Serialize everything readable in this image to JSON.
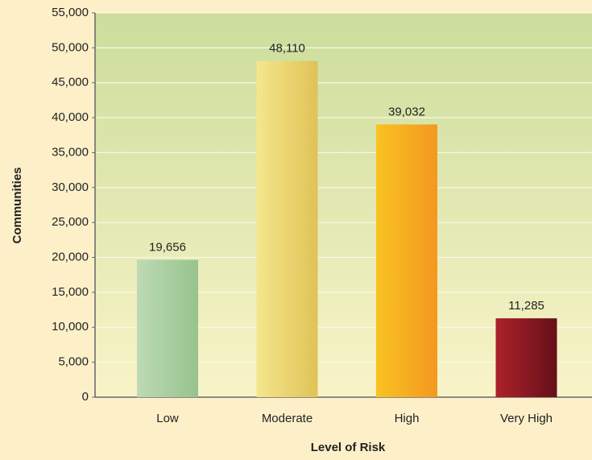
{
  "chart_data": {
    "type": "bar",
    "xlabel": "Level of Risk",
    "ylabel": "Communities",
    "categories": [
      "Low",
      "Moderate",
      "High",
      "Very High"
    ],
    "values": [
      19656,
      48110,
      39032,
      11285
    ],
    "value_labels": [
      "19,656",
      "48,110",
      "39,032",
      "11,285"
    ],
    "colors": [
      [
        "#bddab5",
        "#97c38d"
      ],
      [
        "#f4e78c",
        "#e0c257"
      ],
      [
        "#f9c222",
        "#f4981f"
      ],
      [
        "#ad2129",
        "#65101a"
      ]
    ],
    "ylim": [
      0,
      55000
    ],
    "yticks": [
      0,
      {
        "value": 5000,
        "label": "5,000"
      },
      {
        "value": 10000,
        "label": "10,000"
      },
      {
        "value": 15000,
        "label": "15,000"
      },
      {
        "value": 20000,
        "label": "20,000"
      },
      {
        "value": 25000,
        "label": "25,000"
      },
      {
        "value": 30000,
        "label": "30,000"
      },
      {
        "value": 35000,
        "label": "35,000"
      },
      {
        "value": 40000,
        "label": "40,000"
      },
      {
        "value": 45000,
        "label": "45,000"
      },
      {
        "value": 50000,
        "label": "50,000"
      },
      {
        "value": 55000,
        "label": "55,000"
      }
    ],
    "grid": true
  }
}
